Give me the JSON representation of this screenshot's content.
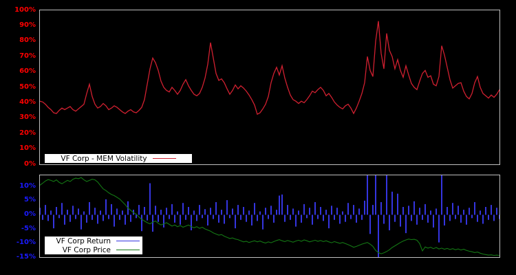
{
  "colors": {
    "background": "#000000",
    "panel_border": "#c0c0c0",
    "volatility_line": "#d02030",
    "volatility_tick_text": "#ff0000",
    "return_bar": "#3535e0",
    "return_tick_text": "#1a1aff",
    "price_line": "#147814",
    "legend_bg": "#ffffff",
    "legend_text": "#000000"
  },
  "top_panel": {
    "legend_label": "VF Corp - MEM Volatility"
  },
  "bottom_panel": {
    "legend_return_label": "VF Corp Return",
    "legend_price_label": "VF Corp Price"
  },
  "chart_data": [
    {
      "type": "line",
      "title": "VF Corp - MEM Volatility",
      "xlabel": "",
      "ylabel": "",
      "ylim": [
        0,
        100
      ],
      "grid": false,
      "legend_position": "inside-bottom-left",
      "ytick_values": [
        100,
        90,
        80,
        70,
        60,
        50,
        40,
        30,
        20,
        10,
        0
      ],
      "ytick_labels": [
        "100%",
        "90%",
        "80%",
        "70%",
        "60%",
        "50%",
        "40%",
        "30%",
        "20%",
        "10%",
        "0%"
      ],
      "series": [
        {
          "name": "VF Corp - MEM Volatility",
          "color": "#d02030",
          "values": [
            41,
            40.5,
            39,
            37,
            35.5,
            33.5,
            33,
            35,
            36.5,
            35.5,
            36.5,
            37.5,
            35.5,
            34.5,
            36,
            37.5,
            39,
            46,
            52,
            44,
            39,
            36.5,
            37.5,
            39.5,
            38,
            35.5,
            36.5,
            38,
            37,
            35.5,
            34,
            33,
            34.5,
            35.5,
            34,
            33.5,
            35,
            37,
            42,
            52,
            62,
            69,
            66,
            61,
            54,
            50,
            48,
            47,
            50,
            48,
            45.5,
            48,
            52,
            55,
            51,
            48,
            45.5,
            44.5,
            46,
            50,
            56,
            65,
            79,
            69,
            59,
            54.5,
            55.5,
            53,
            49,
            45.5,
            48,
            51.5,
            49,
            51,
            49.5,
            47.5,
            45,
            42,
            38.5,
            32.5,
            33.5,
            36,
            39,
            44,
            53,
            59,
            63,
            58,
            64,
            56,
            50,
            45,
            42,
            41,
            39.5,
            41,
            40,
            42,
            44.5,
            47.5,
            46.5,
            48.5,
            50,
            48,
            44.5,
            46,
            43.5,
            40.5,
            38.5,
            37,
            36,
            38,
            39,
            36.5,
            33,
            36.5,
            41,
            46,
            53,
            70,
            61,
            57,
            80,
            93,
            72,
            62,
            85,
            74,
            70,
            62,
            68,
            61,
            56.5,
            64,
            58,
            52.5,
            50,
            48.5,
            54,
            59,
            61,
            56.5,
            57.5,
            52,
            51,
            57,
            77,
            71,
            63,
            55,
            49.5,
            51,
            52.5,
            53,
            47.5,
            44,
            42.5,
            46,
            53,
            57,
            50,
            46,
            44.5,
            43,
            45,
            43.5,
            45.5,
            48.5
          ]
        }
      ]
    },
    {
      "type": "bar-line",
      "title": "",
      "xlabel": "",
      "ylabel": "",
      "ylim": [
        -15,
        14
      ],
      "grid": false,
      "legend_position": "inside-bottom-left",
      "ytick_values": [
        10,
        5,
        0,
        -5,
        -10,
        -15
      ],
      "ytick_labels": [
        "10%",
        "5%",
        "0%",
        "-5%",
        "-10%",
        "-15%"
      ],
      "series": [
        {
          "name": "VF Corp Return",
          "type": "bar",
          "color": "#3535e0",
          "values": [
            2.5,
            -1.8,
            3.5,
            -2.2,
            1.5,
            -4.8,
            2.8,
            -1.2,
            4.2,
            -3.5,
            1.8,
            -2.5,
            3.2,
            -1.5,
            2.2,
            -5.2,
            1.2,
            -2.8,
            4.5,
            -1.8,
            2.5,
            -3.2,
            1.5,
            -2.2,
            5.5,
            -1.5,
            3.8,
            -4.2,
            2.2,
            -1.8,
            1.5,
            -3.5,
            4.8,
            -2.5,
            1.8,
            -1.2,
            3.5,
            -5.8,
            2.8,
            -2,
            11.2,
            -6,
            3.2,
            -2.5,
            1.8,
            -4.5,
            2.5,
            -1.5,
            3.8,
            -2.8,
            1.2,
            -3.5,
            4.2,
            -1.8,
            2.8,
            -5.5,
            1.5,
            -2.2,
            3.5,
            -1.2,
            2,
            -3.8,
            2.5,
            -1.5,
            4.5,
            -2.8,
            1.8,
            -3.2,
            5.2,
            -1.2,
            2.2,
            -4.8,
            3.5,
            -1.8,
            2.8,
            -2.5,
            1.5,
            -3.8,
            4.2,
            -2.2,
            1.2,
            -5.2,
            2.5,
            -1.5,
            3.2,
            -2.8,
            1.8,
            6.8,
            7.2,
            -2.5,
            3.5,
            -1.8,
            2.2,
            -4.2,
            1.5,
            -2.8,
            3.8,
            -1.2,
            2.5,
            -3.5,
            4.5,
            -1.5,
            2.8,
            -2.2,
            1.8,
            -4.8,
            3.2,
            -1.8,
            2.5,
            -3.2,
            1.2,
            -2.5,
            4.2,
            -1.5,
            3.5,
            -2.8,
            2.2,
            -1.8,
            5,
            14,
            -6.8,
            3.5,
            14,
            -15,
            4.5,
            -3.2,
            14,
            -5.5,
            8.2,
            -2.5,
            7.5,
            -4.2,
            2.8,
            -6.5,
            3.2,
            -2.2,
            4.8,
            -3.5,
            2.5,
            -1.8,
            3.8,
            -2.8,
            1.5,
            -4.5,
            2.2,
            -9.8,
            14,
            -3.8,
            2.8,
            -2.2,
            4.2,
            -1.5,
            3.2,
            -2.8,
            1.8,
            -3.5,
            2.5,
            -1.2,
            4.5,
            -2.5,
            1.5,
            -3.2,
            2.8,
            -1.8,
            3.5,
            -2.2,
            2.5,
            -1.5
          ]
        },
        {
          "name": "VF Corp Price",
          "type": "line",
          "color": "#147814",
          "values": [
            10.5,
            11.2,
            12,
            12.5,
            12.2,
            11.8,
            12.4,
            11.5,
            11,
            11.6,
            12.2,
            11.8,
            12.6,
            13,
            12.8,
            13.2,
            12.4,
            11.8,
            12.2,
            12.6,
            12.4,
            11.6,
            10.4,
            9.2,
            8.6,
            7.8,
            7.2,
            6.8,
            6.2,
            5.6,
            4.6,
            3.6,
            2.4,
            1.6,
            0.8,
            0.2,
            -0.8,
            -1.6,
            -2.2,
            -2.8,
            -3.2,
            -2.6,
            -2.2,
            -3,
            -3.6,
            -3.2,
            -2.8,
            -3.4,
            -4,
            -3.6,
            -4.2,
            -3.8,
            -4.4,
            -4,
            -3.6,
            -4.2,
            -4.6,
            -4.2,
            -4.8,
            -4.4,
            -5,
            -5.4,
            -5.8,
            -6.4,
            -6.8,
            -7.2,
            -7,
            -7.6,
            -8,
            -8.4,
            -8.2,
            -8.6,
            -8.8,
            -9.2,
            -9.6,
            -9.4,
            -9.8,
            -9.5,
            -9.2,
            -9.6,
            -9.3,
            -9.7,
            -10,
            -9.6,
            -9.9,
            -9.5,
            -9.1,
            -8.8,
            -9.2,
            -9.5,
            -9.1,
            -9.4,
            -9.7,
            -9.3,
            -9,
            -9.4,
            -8.9,
            -9.2,
            -9.6,
            -9.3,
            -9,
            -9.4,
            -9.1,
            -9.5,
            -9.2,
            -9.6,
            -9.9,
            -9.5,
            -9.8,
            -10.1,
            -9.8,
            -10.2,
            -10.6,
            -11,
            -11.5,
            -11.2,
            -10.8,
            -10.4,
            -10.1,
            -9.8,
            -10.4,
            -11.2,
            -12.6,
            -13.4,
            -13.8,
            -13.5,
            -13,
            -12.4,
            -11.6,
            -11,
            -10.4,
            -9.8,
            -9.3,
            -8.9,
            -8.6,
            -8.8,
            -8.7,
            -9,
            -10.2,
            -12.8,
            -11.4,
            -11.8,
            -11.5,
            -12,
            -11.6,
            -12.1,
            -11.8,
            -12.2,
            -11.9,
            -12.3,
            -12,
            -12.4,
            -12.1,
            -12.5,
            -12.2,
            -12.6,
            -12.9,
            -13.1,
            -13.4,
            -13.2,
            -13.6,
            -13.9,
            -14.1,
            -14.3,
            -14.2,
            -14.4,
            -14.3,
            -14.4
          ]
        }
      ]
    }
  ]
}
